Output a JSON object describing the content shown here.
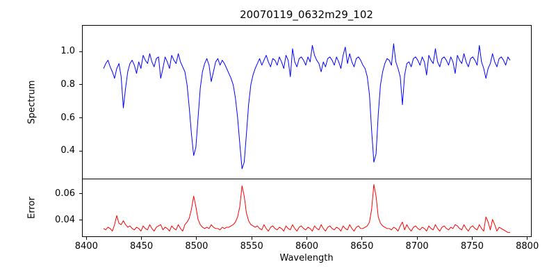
{
  "chart_data": {
    "type": "line",
    "title": "20070119_0632m29_102",
    "xlabel": "Wavelength",
    "grid": false,
    "legend": "none",
    "xlim": [
      8396,
      8804
    ],
    "xticks": [
      8400,
      8450,
      8500,
      8550,
      8600,
      8650,
      8700,
      8750,
      8800
    ],
    "xtick_labels": [
      "8400",
      "8450",
      "8500",
      "8550",
      "8600",
      "8650",
      "8700",
      "8750",
      "8800"
    ],
    "x_start": 8415,
    "x_step": 2,
    "panels": [
      {
        "name": "spectrum",
        "ylabel": "Spectrum",
        "color": "#0000ff",
        "ylim": [
          0.23,
          1.16
        ],
        "yticks": [
          0.4,
          0.6,
          0.8,
          1.0
        ],
        "ytick_labels": [
          "0.4",
          "0.6",
          "0.8",
          "1.0"
        ],
        "values": [
          0.9,
          0.93,
          0.95,
          0.91,
          0.88,
          0.84,
          0.9,
          0.93,
          0.85,
          0.66,
          0.78,
          0.88,
          0.93,
          0.95,
          0.92,
          0.87,
          0.94,
          0.9,
          0.98,
          0.95,
          0.93,
          0.99,
          0.94,
          0.91,
          0.96,
          0.97,
          0.84,
          0.9,
          0.97,
          0.94,
          0.9,
          0.98,
          0.95,
          0.93,
          0.99,
          0.94,
          0.91,
          0.88,
          0.8,
          0.66,
          0.5,
          0.37,
          0.42,
          0.6,
          0.78,
          0.88,
          0.93,
          0.96,
          0.92,
          0.82,
          0.88,
          0.94,
          0.96,
          0.92,
          0.95,
          0.93,
          0.9,
          0.87,
          0.84,
          0.8,
          0.72,
          0.6,
          0.44,
          0.29,
          0.33,
          0.5,
          0.68,
          0.8,
          0.86,
          0.9,
          0.93,
          0.96,
          0.92,
          0.95,
          0.98,
          0.94,
          0.91,
          0.96,
          0.95,
          0.92,
          0.97,
          0.94,
          0.9,
          0.98,
          0.95,
          0.85,
          1.02,
          0.94,
          0.91,
          0.96,
          0.97,
          0.95,
          0.92,
          0.97,
          0.94,
          1.04,
          0.98,
          0.95,
          0.93,
          0.88,
          0.94,
          0.91,
          0.96,
          0.97,
          0.95,
          0.92,
          0.97,
          0.94,
          0.9,
          0.98,
          1.03,
          0.93,
          0.99,
          0.94,
          0.91,
          0.96,
          0.97,
          0.95,
          0.92,
          0.9,
          0.85,
          0.74,
          0.52,
          0.33,
          0.38,
          0.62,
          0.8,
          0.88,
          0.93,
          0.96,
          0.95,
          0.92,
          1.05,
          0.94,
          0.9,
          0.85,
          0.68,
          0.86,
          0.93,
          0.94,
          0.91,
          0.96,
          0.97,
          0.95,
          0.92,
          0.97,
          0.94,
          0.86,
          0.98,
          0.95,
          0.93,
          1.02,
          0.94,
          0.91,
          0.96,
          0.97,
          0.95,
          0.92,
          0.97,
          0.94,
          0.87,
          0.98,
          0.95,
          0.93,
          0.99,
          0.94,
          0.91,
          0.96,
          0.97,
          0.95,
          0.92,
          1.04,
          0.94,
          0.9,
          0.84,
          0.9,
          0.93,
          0.99,
          0.94,
          0.91,
          0.96,
          0.97,
          0.95,
          0.92,
          0.97,
          0.95
        ]
      },
      {
        "name": "error",
        "ylabel": "Error",
        "color": "#ff0000",
        "ylim": [
          0.027,
          0.071
        ],
        "yticks": [
          0.04,
          0.06
        ],
        "ytick_labels": [
          "0.04",
          "0.06"
        ],
        "values": [
          0.033,
          0.032,
          0.034,
          0.033,
          0.031,
          0.036,
          0.043,
          0.037,
          0.036,
          0.039,
          0.036,
          0.034,
          0.035,
          0.033,
          0.032,
          0.034,
          0.033,
          0.031,
          0.035,
          0.033,
          0.032,
          0.036,
          0.033,
          0.031,
          0.034,
          0.035,
          0.036,
          0.032,
          0.034,
          0.033,
          0.031,
          0.035,
          0.033,
          0.032,
          0.036,
          0.033,
          0.031,
          0.036,
          0.038,
          0.041,
          0.048,
          0.058,
          0.05,
          0.04,
          0.036,
          0.034,
          0.033,
          0.034,
          0.033,
          0.036,
          0.034,
          0.033,
          0.033,
          0.032,
          0.034,
          0.033,
          0.034,
          0.034,
          0.035,
          0.036,
          0.038,
          0.042,
          0.05,
          0.066,
          0.058,
          0.045,
          0.039,
          0.036,
          0.035,
          0.034,
          0.035,
          0.033,
          0.032,
          0.036,
          0.033,
          0.031,
          0.034,
          0.035,
          0.033,
          0.032,
          0.034,
          0.033,
          0.031,
          0.035,
          0.033,
          0.032,
          0.036,
          0.033,
          0.031,
          0.034,
          0.035,
          0.033,
          0.032,
          0.034,
          0.033,
          0.031,
          0.035,
          0.033,
          0.032,
          0.036,
          0.033,
          0.031,
          0.034,
          0.035,
          0.033,
          0.032,
          0.034,
          0.033,
          0.031,
          0.035,
          0.033,
          0.032,
          0.036,
          0.033,
          0.031,
          0.034,
          0.035,
          0.033,
          0.033,
          0.034,
          0.035,
          0.038,
          0.048,
          0.067,
          0.058,
          0.042,
          0.037,
          0.035,
          0.034,
          0.033,
          0.033,
          0.032,
          0.034,
          0.033,
          0.031,
          0.035,
          0.038,
          0.032,
          0.036,
          0.033,
          0.031,
          0.034,
          0.035,
          0.033,
          0.032,
          0.034,
          0.033,
          0.031,
          0.035,
          0.033,
          0.032,
          0.036,
          0.033,
          0.031,
          0.034,
          0.035,
          0.033,
          0.032,
          0.034,
          0.033,
          0.036,
          0.035,
          0.033,
          0.032,
          0.036,
          0.033,
          0.031,
          0.034,
          0.035,
          0.033,
          0.032,
          0.036,
          0.033,
          0.031,
          0.042,
          0.038,
          0.032,
          0.04,
          0.036,
          0.031,
          0.034,
          0.033,
          0.032,
          0.031,
          0.03,
          0.03
        ]
      }
    ]
  }
}
